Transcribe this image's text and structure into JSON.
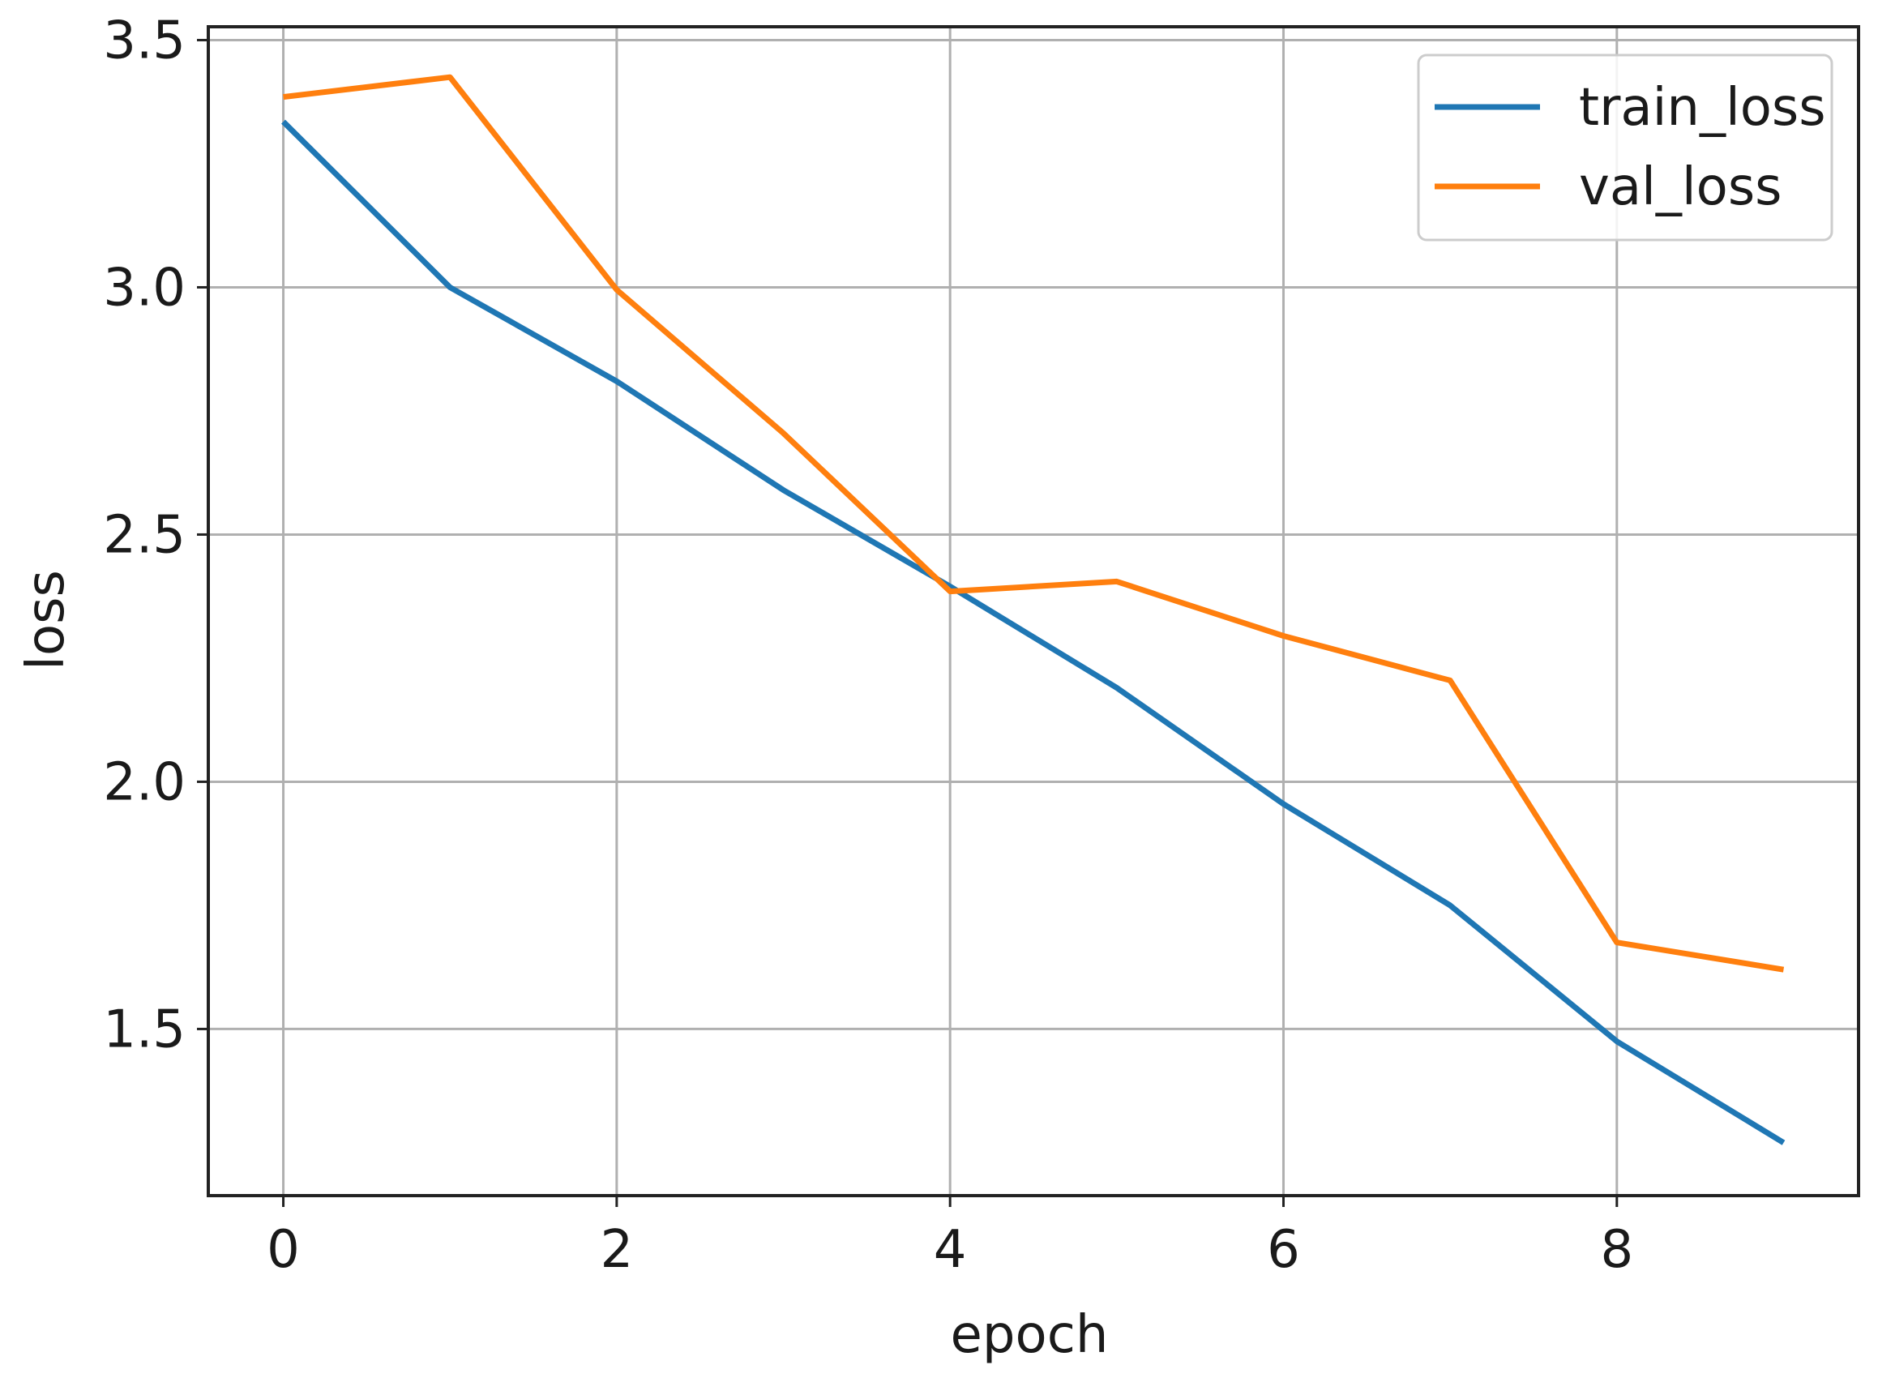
{
  "chart_data": {
    "type": "line",
    "title": "",
    "xlabel": "epoch",
    "ylabel": "loss",
    "x": [
      0,
      1,
      2,
      3,
      4,
      5,
      6,
      7,
      8,
      9
    ],
    "xlim": [
      -0.45,
      9.45
    ],
    "ylim": [
      1.163,
      3.527
    ],
    "xticks": [
      0,
      2,
      4,
      6,
      8
    ],
    "yticks": [
      1.5,
      2.0,
      2.5,
      3.0,
      3.5
    ],
    "xtick_labels": [
      "0",
      "2",
      "4",
      "6",
      "8"
    ],
    "ytick_labels": [
      "1.5",
      "2.0",
      "2.5",
      "3.0",
      "3.5"
    ],
    "grid": true,
    "legend_position": "upper right",
    "series": [
      {
        "name": "train_loss",
        "color": "#1f77b4",
        "values": [
          3.335,
          3.0,
          2.81,
          2.59,
          2.395,
          2.19,
          1.955,
          1.75,
          1.475,
          1.27
        ]
      },
      {
        "name": "val_loss",
        "color": "#ff7f0e",
        "values": [
          3.385,
          3.425,
          2.995,
          2.705,
          2.385,
          2.405,
          2.295,
          2.205,
          1.675,
          1.62
        ]
      }
    ]
  }
}
